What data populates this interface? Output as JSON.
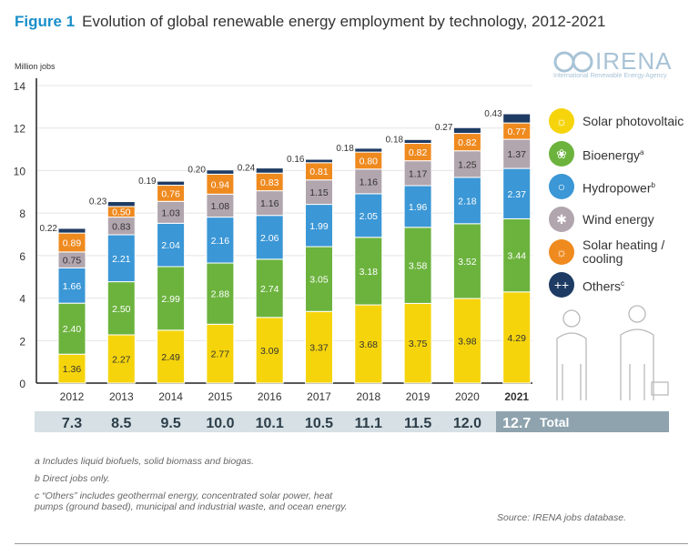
{
  "header": {
    "figure_label": "Figure 1",
    "title": "Evolution of global renewable energy employment by technology, 2012-2021"
  },
  "logo": {
    "name": "IRENA",
    "subtitle": "International Renewable Energy Agency"
  },
  "chart_data": {
    "type": "bar",
    "stacked": true,
    "title": "Evolution of global renewable energy employment by technology, 2012-2021",
    "ylabel": "Million jobs",
    "ylim": [
      0,
      14
    ],
    "yticks": [
      0,
      2,
      4,
      6,
      8,
      10,
      12,
      14
    ],
    "grid": true,
    "legend_placement": "right",
    "categories": [
      "2012",
      "2013",
      "2014",
      "2015",
      "2016",
      "2017",
      "2018",
      "2019",
      "2020",
      "2021"
    ],
    "series": [
      {
        "name": "Solar photovoltaic",
        "color": "#f5d40c",
        "icon": "sun-icon",
        "label_color": "#333333",
        "values": [
          1.36,
          2.27,
          2.49,
          2.77,
          3.09,
          3.37,
          3.68,
          3.75,
          3.98,
          4.29
        ]
      },
      {
        "name": "Bioenergy",
        "sup": "a",
        "color": "#6cb33e",
        "icon": "leaf-icon",
        "label_color": "#ffffff",
        "values": [
          2.4,
          2.5,
          2.99,
          2.88,
          2.74,
          3.05,
          3.18,
          3.58,
          3.52,
          3.44
        ]
      },
      {
        "name": "Hydropower",
        "sup": "b",
        "color": "#3b97d6",
        "icon": "water-drop-icon",
        "label_color": "#ffffff",
        "values": [
          1.66,
          2.21,
          2.04,
          2.16,
          2.06,
          1.99,
          2.05,
          1.96,
          2.18,
          2.37
        ]
      },
      {
        "name": "Wind energy",
        "color": "#b1a5ae",
        "icon": "wind-turbine-icon",
        "label_color": "#333333",
        "values": [
          0.75,
          0.83,
          1.03,
          1.08,
          1.16,
          1.15,
          1.16,
          1.17,
          1.25,
          1.37
        ]
      },
      {
        "name": "Solar heating / cooling",
        "color": "#ef8a1f",
        "icon": "sun-icon",
        "label_color": "#ffffff",
        "values": [
          0.89,
          0.5,
          0.76,
          0.94,
          0.83,
          0.81,
          0.8,
          0.82,
          0.82,
          0.77
        ]
      },
      {
        "name": "Others",
        "sup": "c",
        "color": "#1e3b63",
        "icon": "plus-icon",
        "label_color": "#333333",
        "values": [
          0.22,
          0.23,
          0.19,
          0.2,
          0.24,
          0.16,
          0.18,
          0.18,
          0.27,
          0.43
        ]
      }
    ],
    "totals": [
      "7.3",
      "8.5",
      "9.5",
      "10.0",
      "10.1",
      "10.5",
      "11.1",
      "11.5",
      "12.0",
      "12.7"
    ],
    "totals_label": "Total"
  },
  "footnotes": [
    "a  Includes liquid biofuels, solid biomass and biogas.",
    "b  Direct jobs only.",
    "c  “Others” includes geothermal energy, concentrated solar power, heat pumps (ground based), municipal and industrial waste, and ocean energy."
  ],
  "source": "Source: IRENA jobs database."
}
